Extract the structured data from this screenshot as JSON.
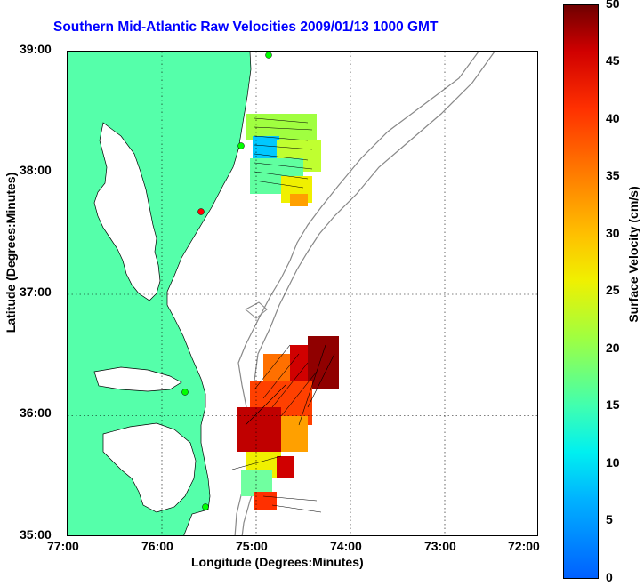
{
  "title": "Southern Mid-Atlantic Raw Velocities 2009/01/13 1000 GMT",
  "xlabel": "Longitude (Degrees:Minutes)",
  "ylabel": "Latitude (Degrees:Minutes)",
  "x_ticks": [
    "77:00",
    "76:00",
    "75:00",
    "74:00",
    "73:00",
    "72:00"
  ],
  "y_ticks": [
    "39:00",
    "38:00",
    "37:00",
    "36:00",
    "35:00"
  ],
  "colorbar": {
    "title": "Surface Velocity (cm/s)",
    "ticks": [
      "50",
      "45",
      "40",
      "35",
      "30",
      "25",
      "20",
      "15",
      "10",
      "5",
      "0"
    ],
    "range": [
      0,
      50
    ]
  },
  "colors": {
    "land": "#55ffaa",
    "title": "#0000ff",
    "bathymetry": "#888888"
  },
  "map_extent": {
    "lon": [
      -77,
      -72
    ],
    "lat": [
      35,
      39
    ]
  }
}
